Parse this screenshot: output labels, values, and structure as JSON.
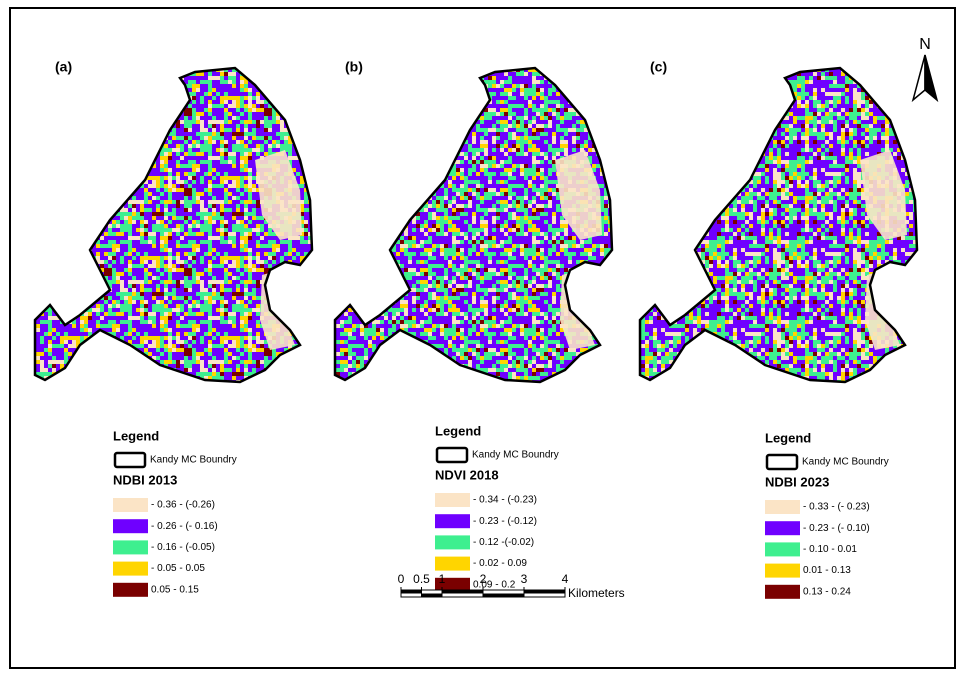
{
  "panels": [
    {
      "label": "(a)",
      "legend": {
        "heading": "Legend",
        "boundary": "Kandy MC Boundry",
        "title": "NDBI 2013",
        "classes": [
          {
            "label": "- 0.36 - (-0.26)",
            "color": "#fbe4c6"
          },
          {
            "label": "- 0.26 - (- 0.16)",
            "color": "#6f00ff"
          },
          {
            "label": "- 0.16 - (-0.05)",
            "color": "#3eef8f"
          },
          {
            "label": "- 0.05 - 0.05",
            "color": "#ffd500"
          },
          {
            "label": "0.05 - 0.15",
            "color": "#7a0000"
          }
        ]
      }
    },
    {
      "label": "(b)",
      "legend": {
        "heading": "Legend",
        "boundary": "Kandy MC Boundry",
        "title": "NDVI 2018",
        "classes": [
          {
            "label": "- 0.34 - (-0.23)",
            "color": "#fbe4c6"
          },
          {
            "label": "- 0.23 - (-0.12)",
            "color": "#6f00ff"
          },
          {
            "label": "- 0.12 -(-0.02)",
            "color": "#3eef8f"
          },
          {
            "label": "- 0.02 - 0.09",
            "color": "#ffd500"
          },
          {
            "label": "0.09 - 0.2",
            "color": "#7a0000"
          }
        ]
      }
    },
    {
      "label": "(c)",
      "legend": {
        "heading": "Legend",
        "boundary": "Kandy MC Boundry",
        "title": "NDBI 2023",
        "classes": [
          {
            "label": "- 0.33 - (- 0.23)",
            "color": "#fbe4c6"
          },
          {
            "label": "- 0.23 - (- 0.10)",
            "color": "#6f00ff"
          },
          {
            "label": "- 0.10 - 0.01",
            "color": "#3eef8f"
          },
          {
            "label": "0.01 - 0.13",
            "color": "#ffd500"
          },
          {
            "label": "0.13 - 0.24",
            "color": "#7a0000"
          }
        ]
      }
    }
  ],
  "north": "N",
  "scale_bar": {
    "ticks": [
      0,
      0.5,
      1,
      2,
      3,
      4
    ],
    "unit": "Kilometers"
  }
}
